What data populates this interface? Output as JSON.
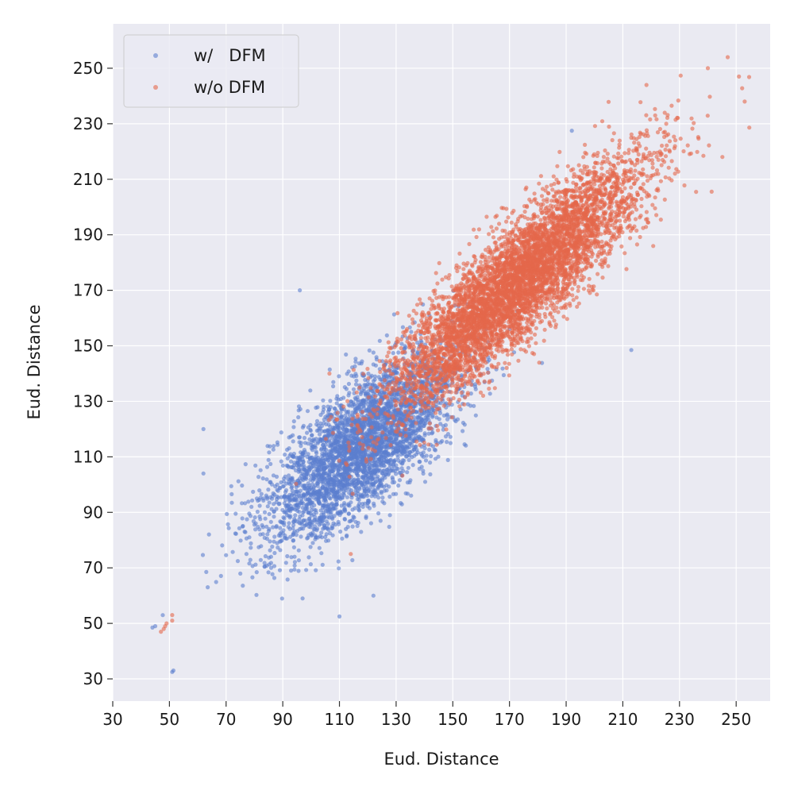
{
  "chart_data": {
    "type": "scatter",
    "title": "",
    "xlabel": "Eud. Distance",
    "ylabel": "Eud. Distance",
    "xlim": [
      30,
      262
    ],
    "ylim": [
      22,
      266
    ],
    "xticks": [
      30,
      50,
      70,
      90,
      110,
      130,
      150,
      170,
      190,
      210,
      230,
      250
    ],
    "yticks": [
      30,
      50,
      70,
      90,
      110,
      130,
      150,
      170,
      190,
      210,
      230,
      250
    ],
    "grid": true,
    "legend_position": "top-left",
    "background_color": "#eaeaf2",
    "grid_color": "#ffffff",
    "series": [
      {
        "name": "w/   DFM",
        "color": "#5b7fcf",
        "distribution": {
          "n": 3600,
          "mean": [
            118,
            114
          ],
          "std": [
            17,
            17
          ],
          "corr": 0.72
        },
        "outliers": [
          [
            44,
            48.5
          ],
          [
            45,
            49
          ],
          [
            51,
            32.5
          ],
          [
            62,
            120
          ],
          [
            62,
            104
          ],
          [
            63,
            68.5
          ],
          [
            110,
            52.5
          ],
          [
            97,
            59
          ],
          [
            96,
            170
          ],
          [
            122,
            60
          ],
          [
            213,
            148.5
          ],
          [
            192,
            227.5
          ]
        ]
      },
      {
        "name": "w/o DFM",
        "color": "#e5674b",
        "distribution": {
          "n": 5600,
          "mean": [
            172,
            172
          ],
          "std": [
            22,
            22
          ],
          "corr": 0.88
        },
        "outliers": [
          [
            47,
            47
          ],
          [
            48,
            48
          ],
          [
            48.5,
            49
          ],
          [
            49,
            50
          ],
          [
            51,
            53
          ],
          [
            51,
            51
          ],
          [
            114,
            75
          ],
          [
            247,
            254
          ],
          [
            251,
            247
          ],
          [
            253,
            238
          ],
          [
            240,
            250
          ]
        ]
      }
    ]
  }
}
